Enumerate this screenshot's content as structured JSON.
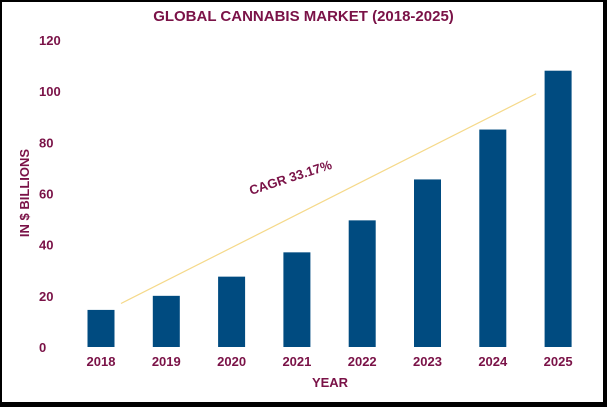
{
  "chart_data": {
    "type": "bar",
    "title": "GLOBAL CANNABIS MARKET (2018-2025)",
    "xlabel": "YEAR",
    "ylabel": "IN $ BILLIONS",
    "categories": [
      "2018",
      "2019",
      "2020",
      "2021",
      "2022",
      "2023",
      "2024",
      "2025"
    ],
    "values": [
      14.5,
      20,
      27.5,
      37,
      49.5,
      65.5,
      85,
      108
    ],
    "ylim": [
      0,
      120
    ],
    "yticks": [
      "0",
      "20",
      "40",
      "60",
      "80",
      "100",
      "120"
    ],
    "grid": false,
    "annotation": "CAGR 33.17%",
    "trendline": {
      "from_category": "2018",
      "from_value": 17,
      "to_category": "2025",
      "to_value": 99
    },
    "colors": {
      "bar": "#004b80",
      "text": "#7a1247",
      "trendline": "#f5d98a",
      "background": "#ffffff",
      "border": "#000000"
    }
  }
}
